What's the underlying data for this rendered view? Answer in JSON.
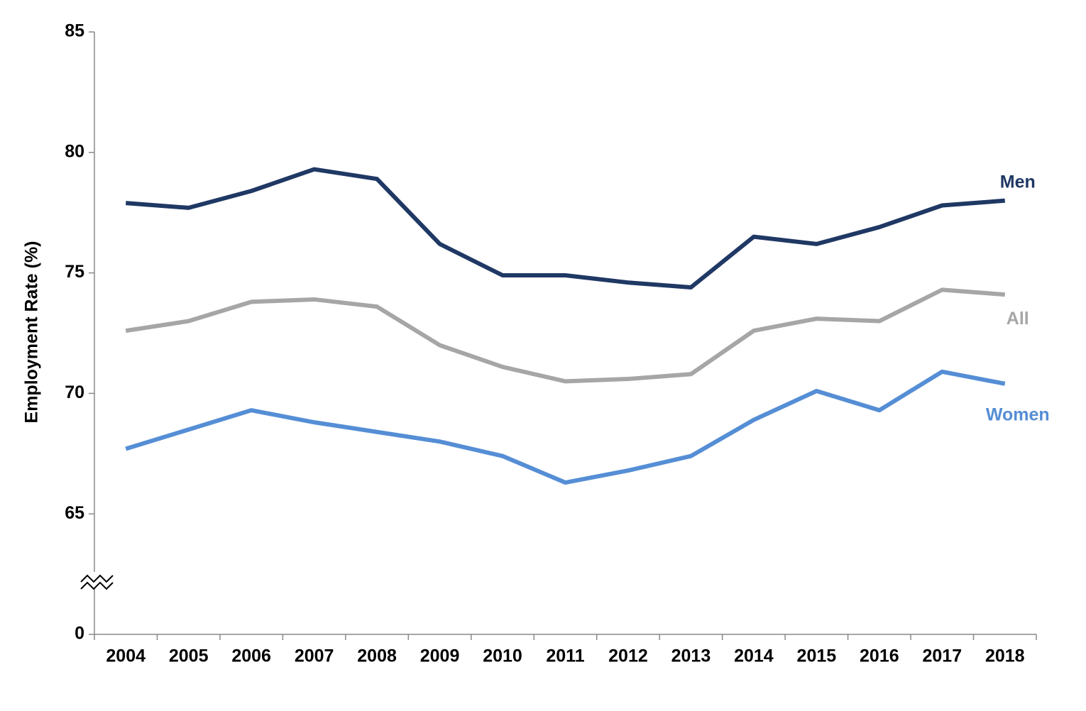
{
  "chart_data": {
    "type": "line",
    "y_label": "Employment Rate (%)",
    "categories": [
      "2004",
      "2005",
      "2006",
      "2007",
      "2008",
      "2009",
      "2010",
      "2011",
      "2012",
      "2013",
      "2014",
      "2015",
      "2016",
      "2017",
      "2018"
    ],
    "series": [
      {
        "name": "Men",
        "color": "#1f3864",
        "values": [
          77.9,
          77.7,
          78.4,
          79.3,
          78.9,
          76.2,
          74.9,
          74.9,
          74.6,
          74.4,
          76.5,
          76.2,
          76.9,
          77.8,
          78.0
        ]
      },
      {
        "name": "All",
        "color": "#a6a6a6",
        "values": [
          72.6,
          73.0,
          73.8,
          73.9,
          73.6,
          72.0,
          71.1,
          70.5,
          70.6,
          70.8,
          72.6,
          73.1,
          73.0,
          74.3,
          74.1
        ]
      },
      {
        "name": "Women",
        "color": "#558ed5",
        "values": [
          67.7,
          68.5,
          69.3,
          68.8,
          68.4,
          68.0,
          67.4,
          66.3,
          66.8,
          67.4,
          68.9,
          70.1,
          69.3,
          70.9,
          70.4
        ]
      }
    ],
    "ylim": [
      0,
      85
    ],
    "yticks": [
      0,
      65,
      70,
      75,
      80,
      85
    ],
    "axis_break": true
  }
}
